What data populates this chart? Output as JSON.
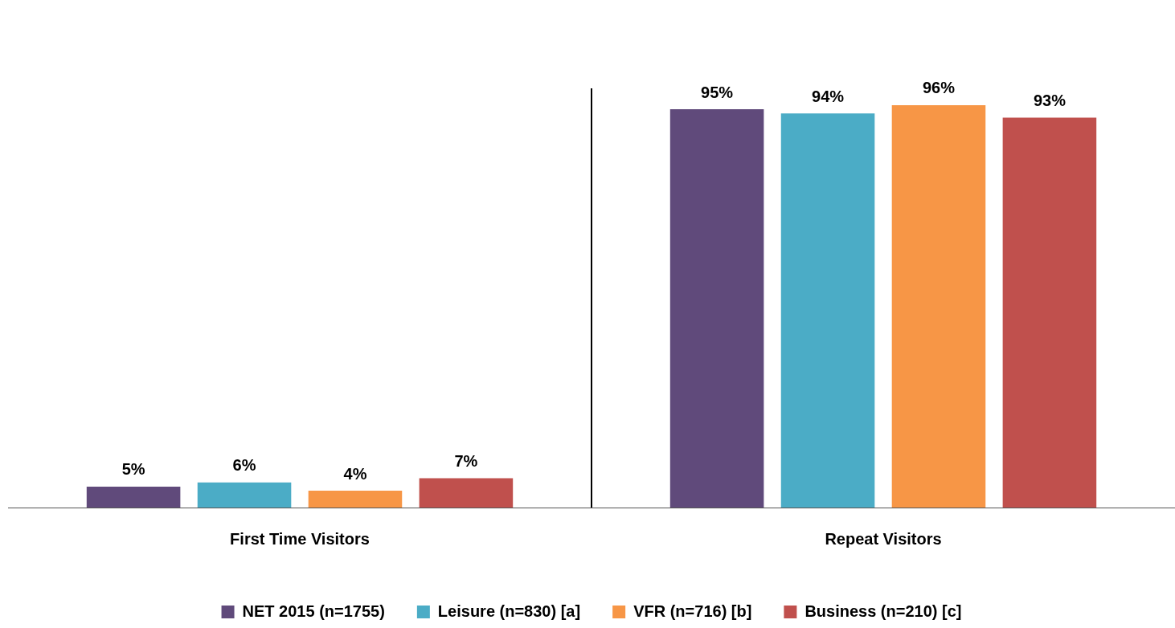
{
  "chart_data": {
    "type": "bar",
    "categories": [
      "First Time Visitors",
      "Repeat Visitors"
    ],
    "series": [
      {
        "name": "NET 2015 (n=1755)",
        "color": "#604a7b",
        "values": [
          5,
          95
        ],
        "value_labels": [
          "5%",
          "95%"
        ]
      },
      {
        "name": "Leisure (n=830) [a]",
        "color": "#4bacc6",
        "values": [
          6,
          94
        ],
        "value_labels": [
          "6%",
          "94%"
        ]
      },
      {
        "name": "VFR (n=716) [b]",
        "color": "#f79646",
        "values": [
          4,
          96
        ],
        "value_labels": [
          "4%",
          "96%"
        ]
      },
      {
        "name": "Business (n=210) [c]",
        "color": "#c0504d",
        "values": [
          7,
          93
        ],
        "value_labels": [
          "7%",
          "93%"
        ]
      }
    ],
    "legend": "bottom",
    "grid": "x",
    "tick_labels": "x"
  }
}
